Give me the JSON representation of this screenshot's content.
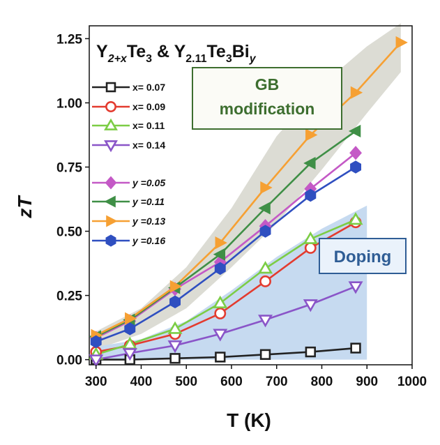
{
  "chart_data": {
    "type": "line",
    "title_parts": {
      "a_base": "Y",
      "a_sub": "2+x",
      "a_mid": "Te",
      "a_sub2": "3",
      "amp": " & ",
      "b_base": "Y",
      "b_sub": "2.11",
      "b_mid": "Te",
      "b_sub2": "3",
      "b_end": "Bi",
      "b_sub3": "y"
    },
    "xlabel": "T (K)",
    "ylabel": "zT",
    "xlim": [
      285,
      1000
    ],
    "ylim": [
      -0.02,
      1.3
    ],
    "xticks": [
      "300",
      "400",
      "500",
      "600",
      "700",
      "800",
      "900",
      "1000"
    ],
    "yticks": [
      "0.00",
      "0.25",
      "0.50",
      "0.75",
      "1.00",
      "1.25"
    ],
    "annotations": {
      "gb_line1": "GB",
      "gb_line2": "modification",
      "doping": "Doping"
    },
    "series": [
      {
        "name": "x= 0.07",
        "marker": "square",
        "color": "#222222",
        "x": [
          300,
          375,
          475,
          575,
          675,
          775,
          875
        ],
        "y": [
          0.0,
          0.0,
          0.005,
          0.01,
          0.02,
          0.03,
          0.045
        ]
      },
      {
        "name": "x= 0.09",
        "marker": "circle",
        "color": "#e33b2f",
        "x": [
          300,
          375,
          475,
          575,
          675,
          775,
          875
        ],
        "y": [
          0.03,
          0.055,
          0.1,
          0.18,
          0.305,
          0.435,
          0.535
        ]
      },
      {
        "name": "x= 0.11",
        "marker": "triangle-up",
        "color": "#7ccd45",
        "x": [
          300,
          375,
          475,
          575,
          675,
          775,
          875
        ],
        "y": [
          0.02,
          0.06,
          0.12,
          0.22,
          0.355,
          0.47,
          0.545
        ]
      },
      {
        "name": "x= 0.14",
        "marker": "triangle-down",
        "color": "#8a55c8",
        "x": [
          300,
          375,
          475,
          575,
          675,
          775,
          875
        ],
        "y": [
          0.0,
          0.025,
          0.055,
          0.1,
          0.155,
          0.215,
          0.285
        ]
      },
      {
        "name": "y =0.05",
        "marker": "diamond",
        "color": "#c459c6",
        "x": [
          300,
          375,
          475,
          575,
          675,
          775,
          875
        ],
        "y": [
          0.085,
          0.15,
          0.275,
          0.38,
          0.52,
          0.665,
          0.805
        ]
      },
      {
        "name": "y =0.11",
        "marker": "triangle-left",
        "color": "#3f8f46",
        "x": [
          300,
          375,
          475,
          575,
          675,
          775,
          875
        ],
        "y": [
          0.09,
          0.155,
          0.28,
          0.41,
          0.59,
          0.765,
          0.89
        ]
      },
      {
        "name": "y =0.13",
        "marker": "triangle-right",
        "color": "#f6a033",
        "x": [
          300,
          375,
          475,
          575,
          675,
          775,
          875,
          975
        ],
        "y": [
          0.095,
          0.16,
          0.285,
          0.455,
          0.67,
          0.875,
          1.04,
          1.235
        ]
      },
      {
        "name": "y =0.16",
        "marker": "hexagon",
        "color": "#2f4fc0",
        "x": [
          300,
          375,
          475,
          575,
          675,
          775,
          875
        ],
        "y": [
          0.07,
          0.12,
          0.225,
          0.355,
          0.5,
          0.64,
          0.75
        ]
      }
    ],
    "shaded_regions": [
      {
        "label": "GB modification",
        "color": "#dcdcd4",
        "upper": [
          [
            300,
            0.11
          ],
          [
            400,
            0.2
          ],
          [
            500,
            0.36
          ],
          [
            600,
            0.59
          ],
          [
            700,
            0.87
          ],
          [
            800,
            1.07
          ],
          [
            900,
            1.22
          ],
          [
            975,
            1.31
          ]
        ],
        "lower": [
          [
            975,
            1.12
          ],
          [
            900,
            0.96
          ],
          [
            800,
            0.74
          ],
          [
            700,
            0.53
          ],
          [
            600,
            0.36
          ],
          [
            500,
            0.2
          ],
          [
            400,
            0.1
          ],
          [
            300,
            0.04
          ]
        ]
      },
      {
        "label": "Doping",
        "color": "#c6daf0",
        "upper": [
          [
            300,
            0.05
          ],
          [
            400,
            0.08
          ],
          [
            500,
            0.15
          ],
          [
            600,
            0.27
          ],
          [
            700,
            0.4
          ],
          [
            800,
            0.51
          ],
          [
            900,
            0.6
          ]
        ],
        "lower": [
          [
            900,
            0.0
          ],
          [
            300,
            0.0
          ]
        ]
      }
    ],
    "grid": false,
    "legend_position": "left"
  }
}
